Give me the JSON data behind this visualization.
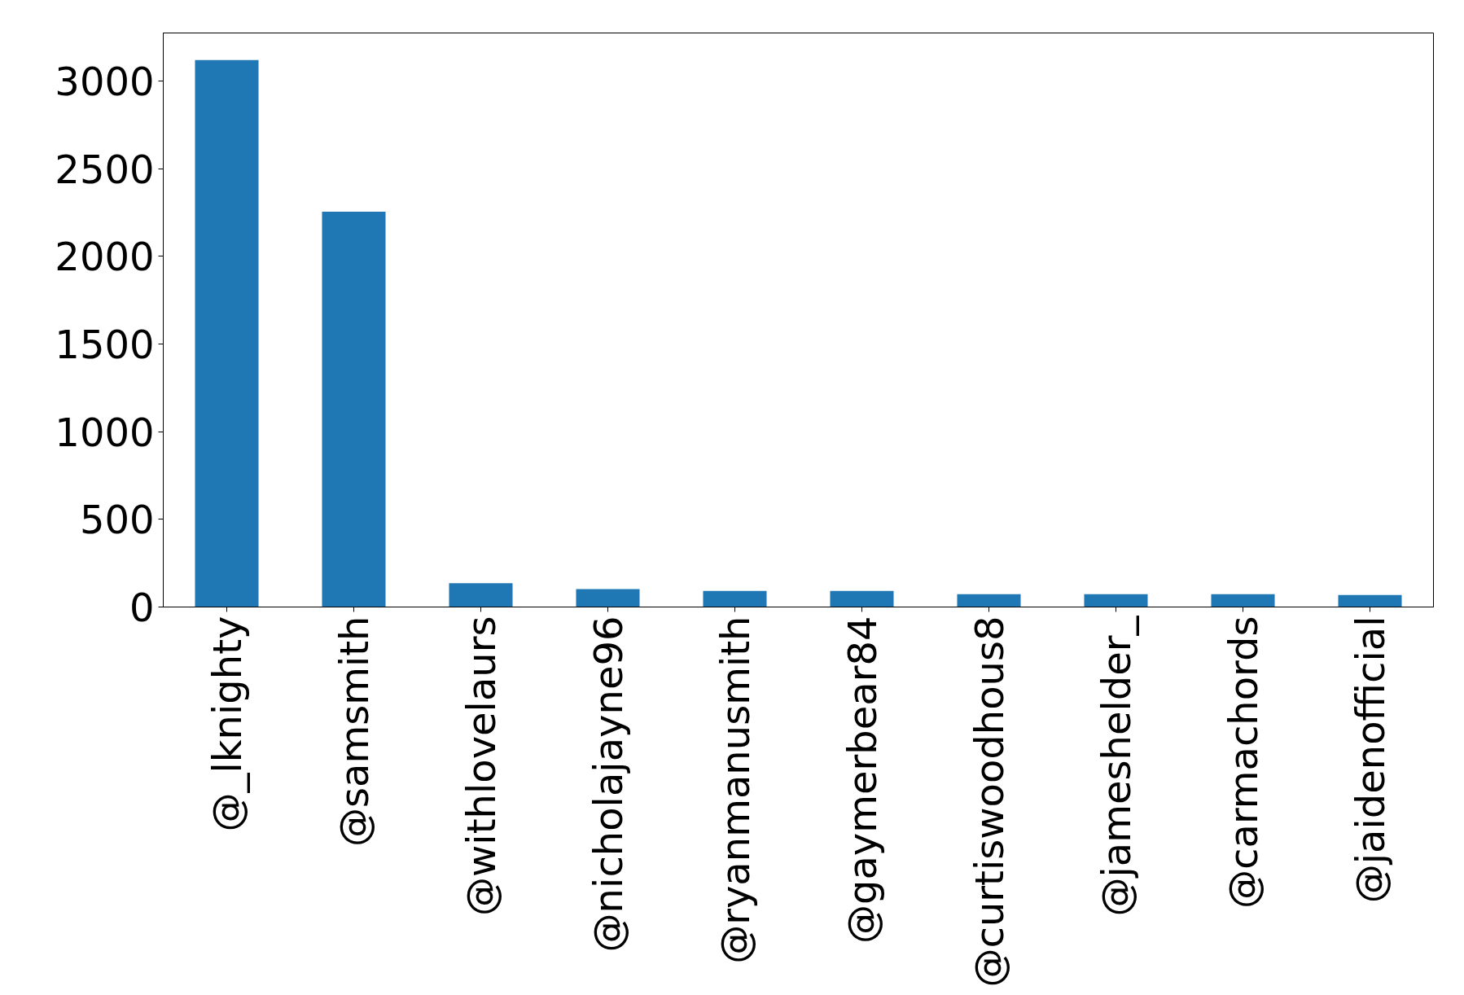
{
  "chart_data": {
    "type": "bar",
    "categories": [
      "@_lknighty",
      "@samsmith",
      "@withlovelaurs",
      "@nicholajayne96",
      "@ryanmanusmith",
      "@gaymerbear84",
      "@curtiswoodhous8",
      "@jameshelder_",
      "@carmachords",
      "@jaidenofficial"
    ],
    "values": [
      3120,
      2255,
      136,
      102,
      92,
      92,
      73,
      73,
      73,
      68
    ],
    "color": "#1f77b4",
    "ylim": [
      0,
      3275
    ],
    "yticks": [
      0,
      500,
      1000,
      1500,
      2000,
      2500,
      3000
    ],
    "grid": false
  }
}
